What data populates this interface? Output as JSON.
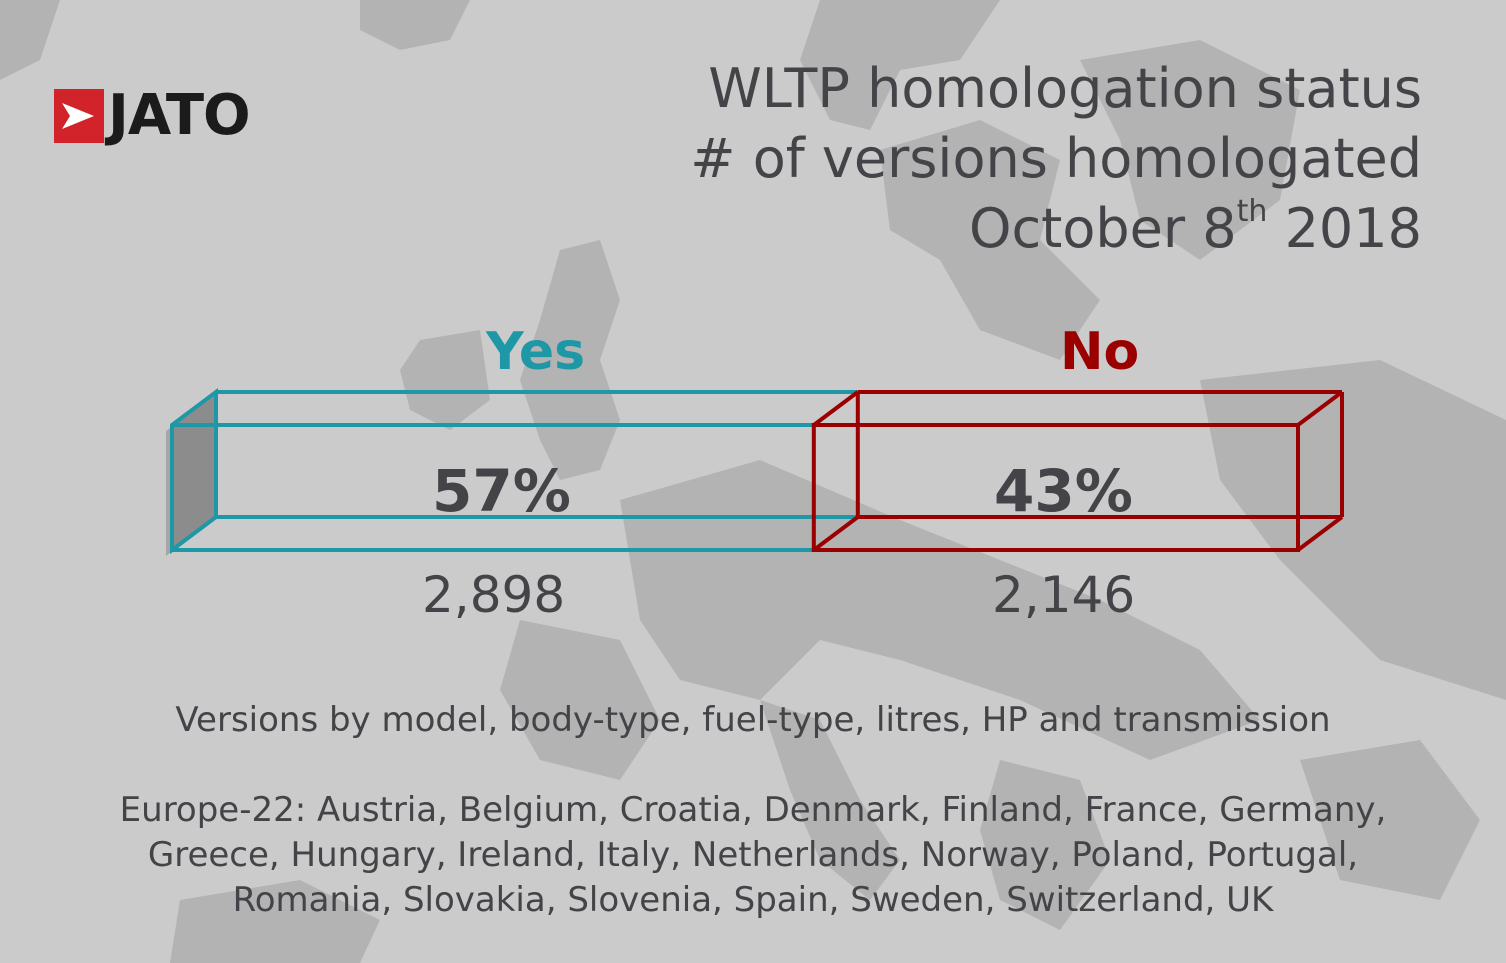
{
  "brand": {
    "name": "JATO"
  },
  "title": {
    "line1": "WLTP homologation status",
    "line2": "# of versions homologated",
    "date_prefix": "October 8",
    "date_sup": "th",
    "date_suffix": " 2018"
  },
  "colors": {
    "yes": "#1e98a6",
    "no": "#9b0000",
    "text": "#444448",
    "brand_red": "#d2232a"
  },
  "chart_data": {
    "type": "bar",
    "orientation": "horizontal-stacked",
    "categories": [
      "Yes",
      "No"
    ],
    "values_percent": [
      57,
      43
    ],
    "counts": [
      2898,
      2146
    ],
    "labels": {
      "yes_label": "Yes",
      "no_label": "No",
      "yes_percent": "57%",
      "no_percent": "43%",
      "yes_count": "2,898",
      "no_count": "2,146"
    }
  },
  "notes": {
    "versions": "Versions by model, body-type, fuel-type, litres, HP and transmission",
    "europe_line1": "Europe-22: Austria, Belgium, Croatia, Denmark, Finland, France, Germany,",
    "europe_line2": "Greece, Hungary, Ireland, Italy, Netherlands, Norway, Poland, Portugal,",
    "europe_line3": "Romania, Slovakia, Slovenia, Spain, Sweden, Switzerland, UK"
  }
}
